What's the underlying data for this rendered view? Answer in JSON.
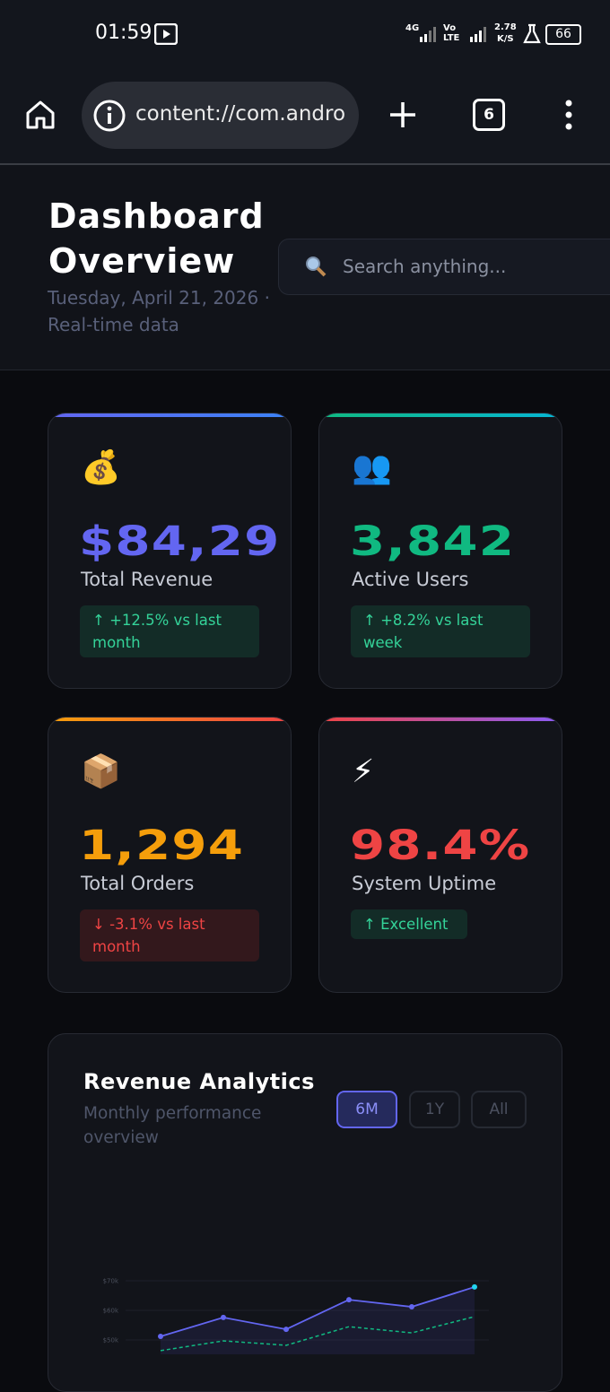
{
  "status_bar": {
    "time": "01:59",
    "network": "4G",
    "volte": "Vo LTE",
    "speed": "2.78",
    "speed_unit": "K/S",
    "battery": "66"
  },
  "browser": {
    "url": "content://com.andro",
    "tab_count": "6"
  },
  "header": {
    "title": "Dashboard Overview",
    "date": "Tuesday, April 21, 2026 · Real-time data",
    "search_placeholder": "Search anything..."
  },
  "stats": [
    {
      "icon": "💰",
      "value": "$84,29",
      "label": "Total Revenue",
      "change": "↑ +12.5% vs last month"
    },
    {
      "icon": "👥",
      "value": "3,842",
      "label": "Active Users",
      "change": "↑ +8.2% vs last week"
    },
    {
      "icon": "📦",
      "value": "1,294",
      "label": "Total Orders",
      "change": "↓ -3.1% vs last month"
    },
    {
      "icon": "⚡",
      "value": "98.4%",
      "label": "System Uptime",
      "change": "↑ Excellent"
    }
  ],
  "analytics": {
    "title": "Revenue Analytics",
    "subtitle": "Monthly performance overview",
    "ranges": [
      "6M",
      "1Y",
      "All"
    ]
  },
  "chart_data": {
    "type": "line",
    "series": [
      {
        "color": "#6366f1",
        "values": [
          51200,
          57600,
          53600,
          63600,
          61200,
          67900
        ]
      },
      {
        "color": "#10b981",
        "values": [
          46400,
          49700,
          48200,
          54500,
          52400,
          57900
        ]
      }
    ],
    "ylim": [
      40000,
      70000
    ],
    "yticks": [
      {
        "value": 50000,
        "label": "$50k"
      },
      {
        "value": 60000,
        "label": "$60k"
      },
      {
        "value": 70000,
        "label": "$70k"
      }
    ],
    "grid": true
  }
}
